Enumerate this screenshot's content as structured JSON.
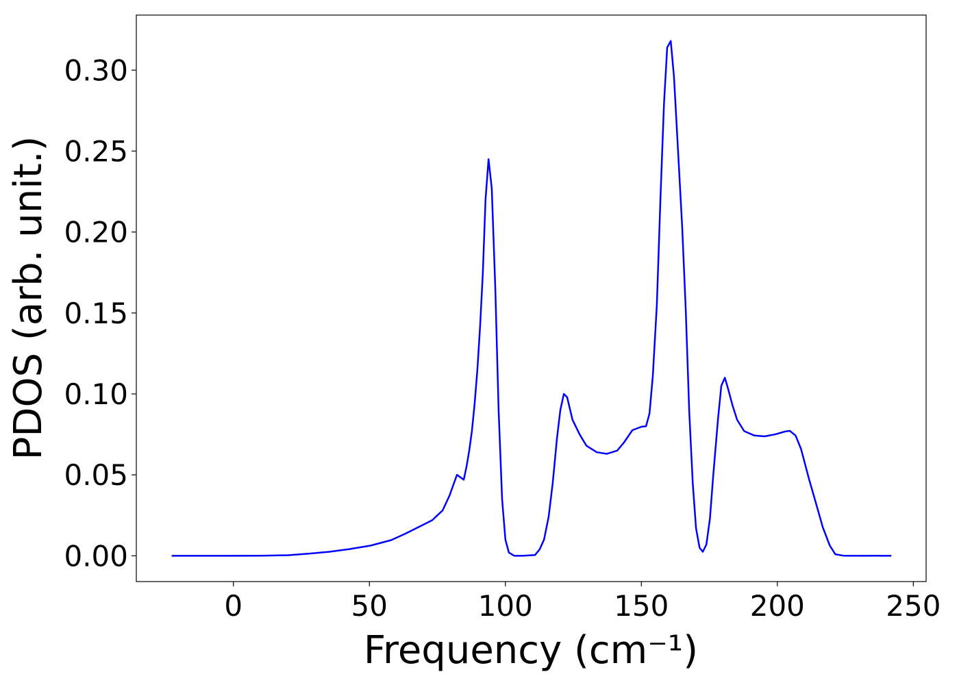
{
  "chart_data": {
    "type": "line",
    "xlabel": "Frequency (cm⁻¹)",
    "ylabel": "PDOS (arb. unit.)",
    "color": "#0000ff",
    "xlim": [
      -35.7,
      254.7
    ],
    "ylim": [
      -0.0159,
      0.334
    ],
    "xticks": [
      0,
      50,
      100,
      150,
      200,
      250
    ],
    "yticks": [
      {
        "value": 0,
        "label": "0.00"
      },
      {
        "value": 0.05,
        "label": "0.05"
      },
      {
        "value": 0.1,
        "label": "0.10"
      },
      {
        "value": 0.15,
        "label": "0.15"
      },
      {
        "value": 0.2,
        "label": "0.20"
      },
      {
        "value": 0.25,
        "label": "0.25"
      },
      {
        "value": 0.3,
        "label": "0.30"
      }
    ],
    "x": [
      -22.7,
      0,
      10,
      20.2,
      27.7,
      35.3,
      42.8,
      50.4,
      58,
      63,
      68,
      73.1,
      76.9,
      79.4,
      82.2,
      84.7,
      85.7,
      86.7,
      87.7,
      88.7,
      89.7,
      90.7,
      91.7,
      92.7,
      93.8,
      95,
      96.3,
      97.5,
      98.8,
      100,
      101.3,
      103.3,
      105.8,
      110.9,
      112.6,
      114.2,
      115.9,
      117.4,
      119,
      120.2,
      121.5,
      122.7,
      124.7,
      127.3,
      129.8,
      133.6,
      137.3,
      141.1,
      143.6,
      146.7,
      150,
      151.7,
      153,
      154.2,
      155.7,
      157,
      158.3,
      159.5,
      160.8,
      162,
      163.3,
      165,
      166.3,
      167.6,
      168.9,
      170.1,
      171.4,
      172.6,
      173.9,
      175.2,
      176.4,
      178.2,
      179.4,
      180.7,
      181.9,
      183.5,
      185.2,
      187.8,
      191.5,
      195.3,
      199.1,
      202.9,
      204.6,
      206.7,
      208.7,
      211.7,
      214.2,
      216.7,
      219.3,
      221.3,
      224.3,
      241.9
    ],
    "y": [
      0,
      0,
      0.0001,
      0.0004,
      0.0013,
      0.0025,
      0.0042,
      0.0063,
      0.0097,
      0.0135,
      0.0177,
      0.022,
      0.028,
      0.037,
      0.05,
      0.047,
      0.055,
      0.065,
      0.077,
      0.094,
      0.115,
      0.142,
      0.174,
      0.22,
      0.245,
      0.227,
      0.165,
      0.09,
      0.035,
      0.01,
      0.002,
      0,
      0,
      0.0005,
      0.004,
      0.01,
      0.024,
      0.045,
      0.073,
      0.09,
      0.1,
      0.098,
      0.084,
      0.075,
      0.068,
      0.064,
      0.063,
      0.065,
      0.07,
      0.0776,
      0.0797,
      0.08,
      0.088,
      0.111,
      0.155,
      0.22,
      0.279,
      0.314,
      0.318,
      0.296,
      0.256,
      0.203,
      0.153,
      0.089,
      0.045,
      0.017,
      0.005,
      0.0025,
      0.007,
      0.023,
      0.049,
      0.085,
      0.105,
      0.11,
      0.103,
      0.093,
      0.084,
      0.077,
      0.0743,
      0.0738,
      0.075,
      0.0768,
      0.0772,
      0.0743,
      0.066,
      0.047,
      0.0325,
      0.0177,
      0.0063,
      0.001,
      0.0001,
      0
    ]
  }
}
